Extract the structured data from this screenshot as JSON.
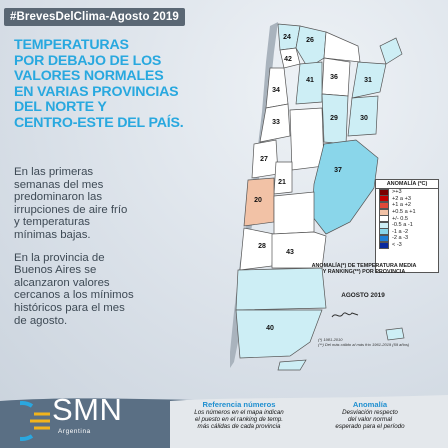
{
  "hashtag": "#BrevesDelClima-Agosto 2019",
  "headline": [
    "TEMPERATURAS",
    "POR DEBAJO DE LOS",
    "VALORES NORMALES",
    "EN VARIAS PROVINCIAS",
    "DEL NORTE Y",
    "CENTRO-ESTE DEL PAÍS."
  ],
  "paragraph1": [
    "En las primeras",
    "semanas del mes",
    "predominaron las",
    "irrupciones de aire frío",
    "y temperaturas",
    "mínimas bajas."
  ],
  "paragraph2": [
    "En la provincia de",
    "Buenos Aires se",
    "alcanzaron valores",
    "cercanos a los mínimos",
    "históricos para el mes",
    "de agosto."
  ],
  "map_numbers": [
    "24",
    "26",
    "42",
    "41",
    "36",
    "34",
    "31",
    "33",
    "29",
    "30",
    "27",
    "37",
    "20",
    "21",
    "28",
    "43",
    "40"
  ],
  "legend": {
    "title": "ANOMALÍA (ºC)",
    "rows": [
      {
        "label": ">+3",
        "color": "#7a0000"
      },
      {
        "label": "+2 a +3",
        "color": "#c20000"
      },
      {
        "label": "+1 a +2",
        "color": "#e04a3a"
      },
      {
        "label": "+0.5 a +1",
        "color": "#f2c2a6"
      },
      {
        "label": "+/- 0.5",
        "color": "#ffffff"
      },
      {
        "label": "-0.5 a -1",
        "color": "#cdeef5"
      },
      {
        "label": "-1 a -2",
        "color": "#8ad6ea"
      },
      {
        "label": "-2 a -3",
        "color": "#1f7fd6"
      },
      {
        "label": "< -3",
        "color": "#0a2a9e"
      }
    ]
  },
  "map_caption": [
    "ANOMALÍA(*) DE TEMPERATURA MEDIA",
    "Y RANKING(**) POR PROVINCIA"
  ],
  "map_date": "AGOSTO 2019",
  "footnote": [
    "(*) 1981-2010",
    "(**) Del más cálido al más frío 1961-2019 (59 años)"
  ],
  "logo": {
    "name": "SMN",
    "sub": "Argentina"
  },
  "ref_numbers": {
    "title": "Referencia números",
    "lines": [
      "Los números en el mapa indican",
      "el puesto en el ranking de temp.",
      "más cálidas de cada provincia"
    ]
  },
  "ref_anomaly": {
    "title": "Anomalía",
    "lines": [
      "Desviación respecto",
      "del valor normal",
      "esperado para el período"
    ]
  },
  "colors": {
    "headline": "#28a8df",
    "badge_bg": "#5a6774",
    "footer": "#5a6f84",
    "accent": "#1f8fd0"
  }
}
